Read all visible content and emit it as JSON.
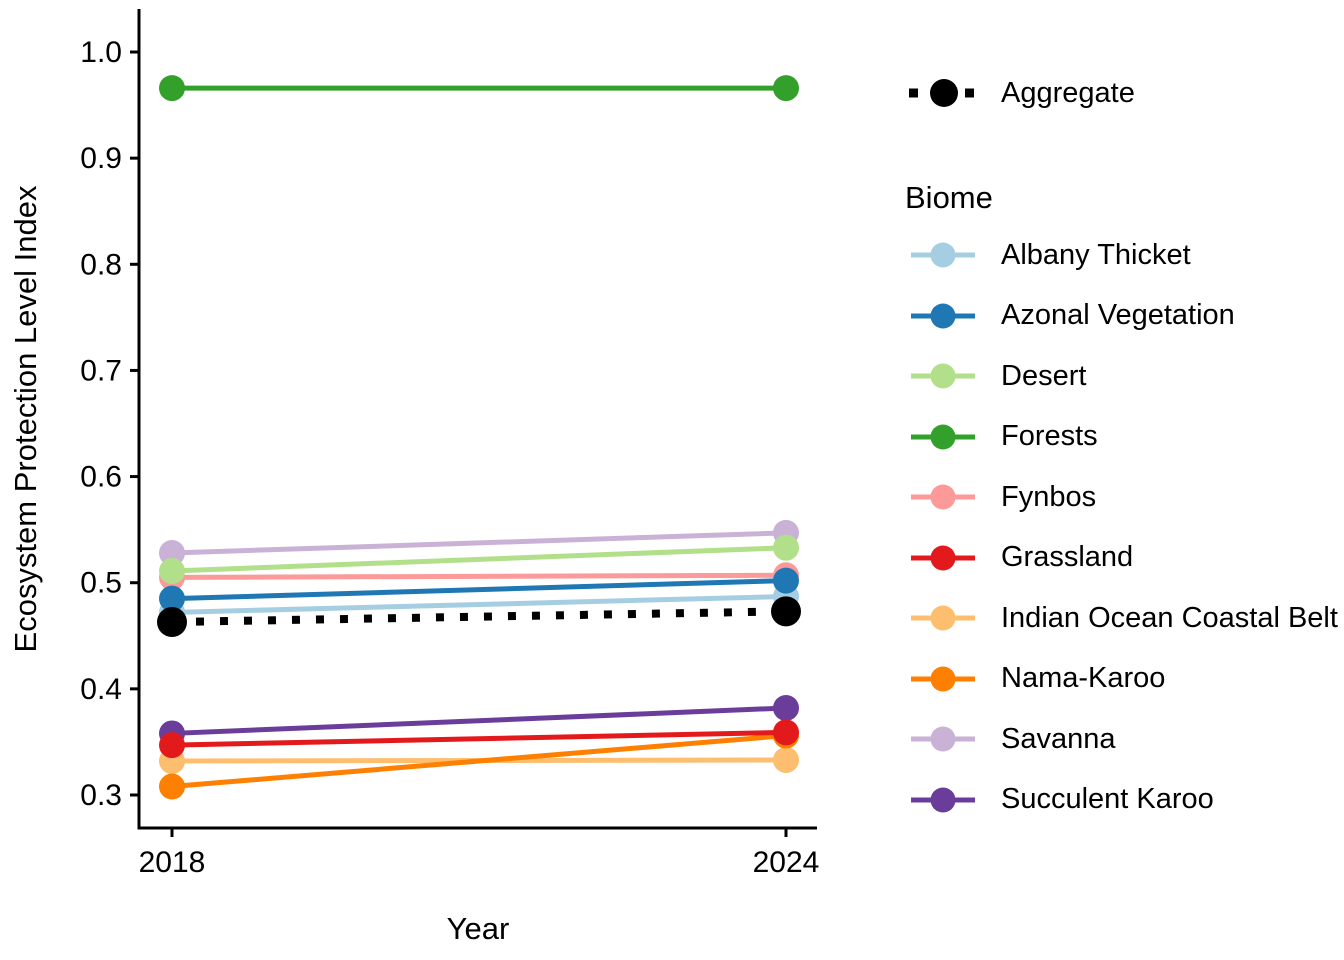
{
  "chart_data": {
    "type": "line",
    "title": "",
    "xlabel": "Year",
    "ylabel": "Ecosystem Protection Level Index",
    "x": [
      2018,
      2024
    ],
    "x_tick_labels": [
      "2018",
      "2024"
    ],
    "y_ticks": [
      0.3,
      0.4,
      0.5,
      0.6,
      0.7,
      0.8,
      0.9,
      1.0
    ],
    "y_tick_labels": [
      "0.3",
      "0.4",
      "0.5",
      "0.6",
      "0.7",
      "0.8",
      "0.9",
      "1.0"
    ],
    "xlim": [
      2017.7,
      2024.3
    ],
    "ylim": [
      0.27,
      1.035
    ],
    "grid": false,
    "legend_position": "right",
    "legend_title": "Biome",
    "aggregate": {
      "name": "Aggregate",
      "values": [
        0.463,
        0.473
      ],
      "color": "#000000",
      "linestyle": "dotted"
    },
    "series": [
      {
        "name": "Albany Thicket",
        "values": [
          0.472,
          0.487
        ],
        "color": "#A6CEE3"
      },
      {
        "name": "Azonal Vegetation",
        "values": [
          0.485,
          0.502
        ],
        "color": "#1F78B4"
      },
      {
        "name": "Desert",
        "values": [
          0.511,
          0.533
        ],
        "color": "#B2DF8A"
      },
      {
        "name": "Forests",
        "values": [
          0.966,
          0.966
        ],
        "color": "#33A02C"
      },
      {
        "name": "Fynbos",
        "values": [
          0.505,
          0.507
        ],
        "color": "#FB9A99"
      },
      {
        "name": "Grassland",
        "values": [
          0.347,
          0.359
        ],
        "color": "#E31A1C"
      },
      {
        "name": "Indian Ocean Coastal Belt",
        "values": [
          0.332,
          0.333
        ],
        "color": "#FDBF6F"
      },
      {
        "name": "Nama-Karoo",
        "values": [
          0.308,
          0.356
        ],
        "color": "#FF7F00"
      },
      {
        "name": "Savanna",
        "values": [
          0.528,
          0.547
        ],
        "color": "#CAB2D6"
      },
      {
        "name": "Succulent Karoo",
        "values": [
          0.358,
          0.382
        ],
        "color": "#6A3D9A"
      }
    ]
  }
}
